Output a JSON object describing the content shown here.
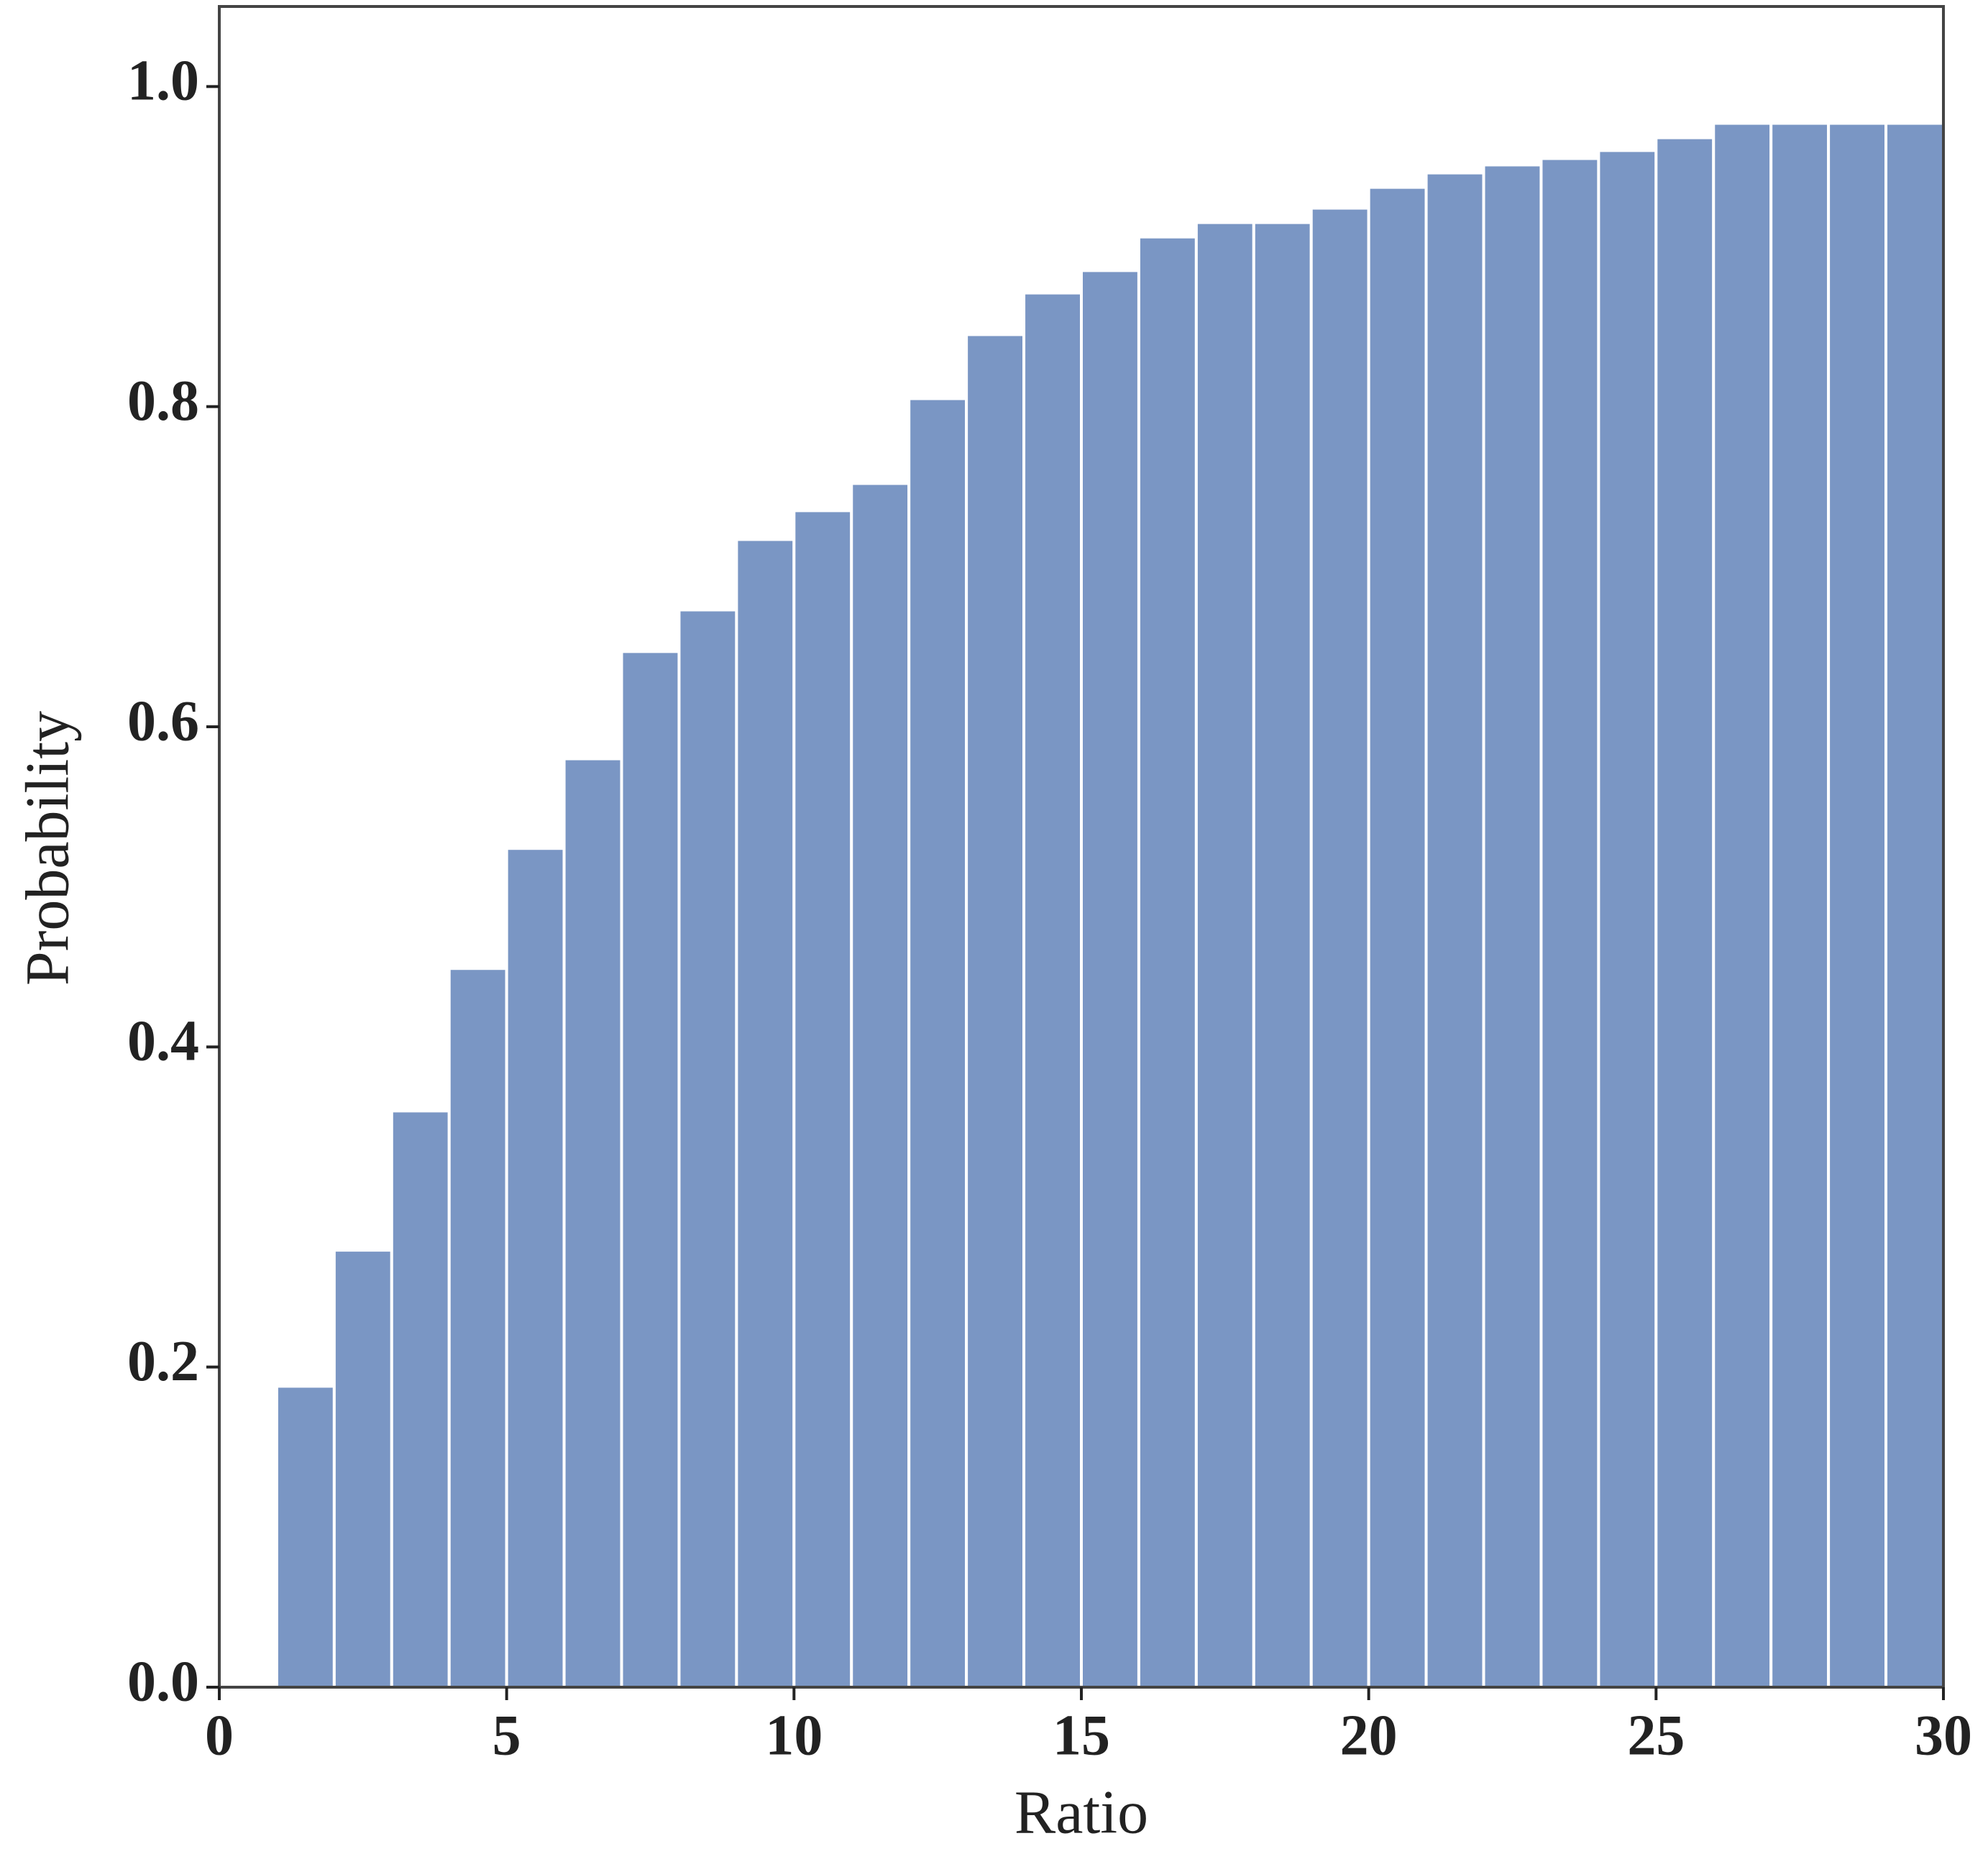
{
  "chart_data": {
    "type": "histogram",
    "x_label": "Ratio",
    "y_label": "Probability",
    "bins": [
      1,
      2,
      3,
      4,
      5,
      6,
      7,
      8,
      9,
      10,
      11,
      12,
      13,
      14,
      15,
      16,
      17,
      18,
      19,
      20,
      21,
      22,
      23,
      24,
      25,
      26,
      27,
      28,
      29,
      30
    ],
    "values": [
      0.188,
      0.273,
      0.36,
      0.449,
      0.524,
      0.58,
      0.647,
      0.673,
      0.717,
      0.735,
      0.752,
      0.805,
      0.845,
      0.871,
      0.885,
      0.906,
      0.915,
      0.915,
      0.924,
      0.937,
      0.946,
      0.951,
      0.955,
      0.96,
      0.968,
      0.977,
      0.977,
      0.977,
      0.977
    ],
    "color": "#7a96c4",
    "xlim": [
      0,
      30
    ],
    "ylim": [
      0,
      1.05
    ],
    "xticks": [
      0,
      5,
      10,
      15,
      20,
      25,
      30
    ],
    "yticks": [
      {
        "value": 0,
        "label": "0.0"
      },
      {
        "value": 0.2,
        "label": "0.2"
      },
      {
        "value": 0.4,
        "label": "0.4"
      },
      {
        "value": 0.6,
        "label": "0.6"
      },
      {
        "value": 0.8,
        "label": "0.8"
      },
      {
        "value": 1.0,
        "label": "1.0"
      }
    ]
  }
}
